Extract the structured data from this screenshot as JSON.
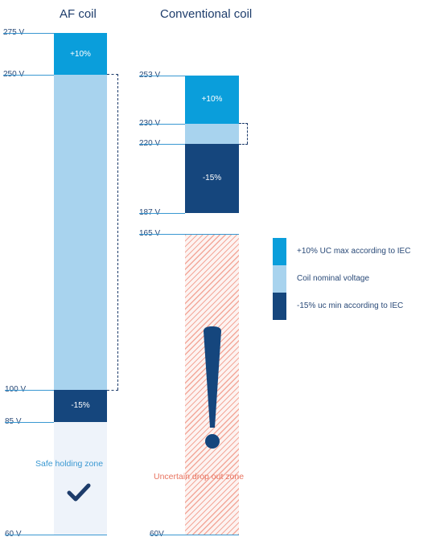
{
  "af_coil": {
    "title": "AF coil",
    "levels": {
      "v275": "275 V",
      "v250": "250 V",
      "v100": "100 V",
      "v85": "85 V",
      "v60": "60 V"
    },
    "segments": {
      "max": "+10%",
      "min": "-15%"
    },
    "zone": "Safe holding zone",
    "zone_icon": "checkmark-icon"
  },
  "conventional_coil": {
    "title": "Conventional coil",
    "levels": {
      "v253": "253 V",
      "v230": "230 V",
      "v220": "220 V",
      "v187": "187 V",
      "v165": "165 V",
      "v60": "60V"
    },
    "segments": {
      "max": "+10%",
      "min": "-15%"
    },
    "zone": "Uncertain drop out zone",
    "zone_icon": "exclamation-icon"
  },
  "legend": {
    "max": "+10% UC max according to IEC",
    "nominal": "Coil nominal voltage",
    "min": "-15% uc min according to IEC"
  },
  "colors": {
    "max": "#0a9edb",
    "nominal": "#a8d3ee",
    "min": "#15467d",
    "safe_zone": "#eef3fa",
    "uncertain_zone": "#f3a89a",
    "zone_text_safe": "#3a98d2",
    "zone_text_uncertain": "#e8735f"
  }
}
